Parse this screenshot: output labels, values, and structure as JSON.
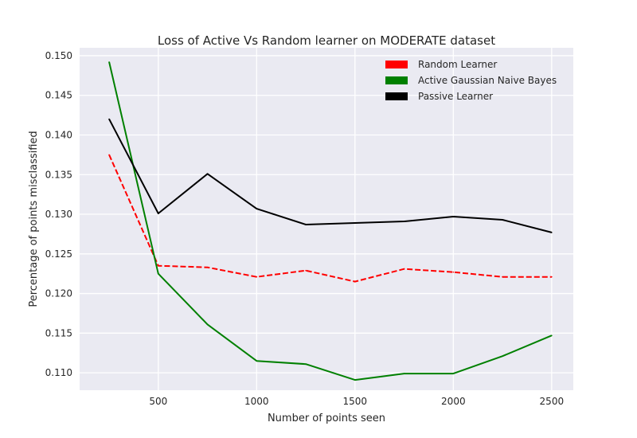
{
  "chart_data": {
    "type": "line",
    "title": "Loss of Active Vs Random learner on MODERATE dataset",
    "xlabel": "Number of points seen",
    "ylabel": "Percentage of points misclassified",
    "xlim": [
      100,
      2610
    ],
    "ylim": [
      0.1078,
      0.151
    ],
    "xticks": [
      500,
      1000,
      1500,
      2000,
      2500
    ],
    "yticks": [
      0.11,
      0.115,
      0.12,
      0.125,
      0.13,
      0.135,
      0.14,
      0.145,
      0.15
    ],
    "ytick_labels": [
      "0.110",
      "0.115",
      "0.120",
      "0.125",
      "0.130",
      "0.135",
      "0.140",
      "0.145",
      "0.150"
    ],
    "xtick_labels": [
      "500",
      "1000",
      "1500",
      "2000",
      "2500"
    ],
    "grid": true,
    "legend_position": "top-right",
    "x": [
      250,
      500,
      750,
      1000,
      1250,
      1500,
      1750,
      2000,
      2250,
      2500
    ],
    "series": [
      {
        "name": "Random Learner",
        "color": "#ff0000",
        "dashed": true,
        "values": [
          0.1375,
          0.1235,
          0.1233,
          0.1221,
          0.1229,
          0.1215,
          0.1231,
          0.1227,
          0.1221,
          0.1221
        ]
      },
      {
        "name": "Active Gaussian Naive Bayes",
        "color": "#008000",
        "dashed": false,
        "values": [
          0.1492,
          0.1225,
          0.1161,
          0.1115,
          0.1111,
          0.1091,
          0.1099,
          0.1099,
          0.1121,
          0.1147
        ]
      },
      {
        "name": "Passive Learner",
        "color": "#000000",
        "dashed": false,
        "values": [
          0.142,
          0.1301,
          0.1351,
          0.1307,
          0.1287,
          0.1289,
          0.1291,
          0.1297,
          0.1293,
          0.1277
        ]
      }
    ]
  }
}
